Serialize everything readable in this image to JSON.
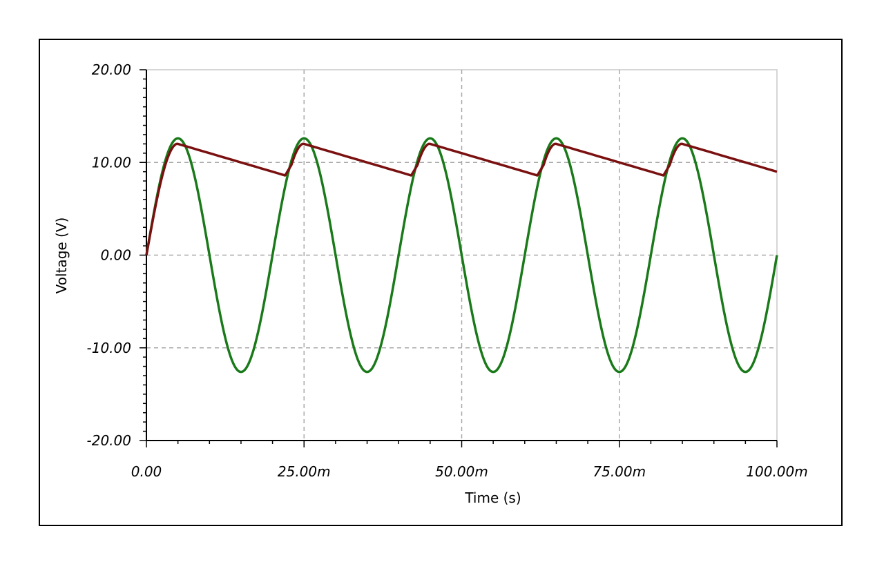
{
  "chart_data": {
    "type": "line",
    "xlabel": "Time (s)",
    "ylabel": "Voltage (V)",
    "xlim": [
      0,
      0.1
    ],
    "ylim": [
      -20,
      20
    ],
    "x_ticks": [
      0,
      0.025,
      0.05,
      0.075,
      0.1
    ],
    "x_tick_labels": [
      "0.00",
      "25.00m",
      "50.00m",
      "75.00m",
      "100.00m"
    ],
    "y_ticks": [
      20,
      10,
      0,
      -10,
      -20
    ],
    "y_tick_labels": [
      "20.00",
      "10.00",
      "0.00",
      "-10.00",
      "-20.00"
    ],
    "grid": true,
    "series": [
      {
        "color": "#1a7a1a",
        "kind": "sine",
        "amplitude": 12.6,
        "frequency_hz": 50,
        "x": [
          0,
          0.005,
          0.01,
          0.015,
          0.02,
          0.025,
          0.03,
          0.035,
          0.04,
          0.045,
          0.05,
          0.055,
          0.06,
          0.065,
          0.07,
          0.075,
          0.08,
          0.085,
          0.09,
          0.095,
          0.1
        ],
        "values": [
          0,
          12.6,
          0,
          -12.6,
          0,
          12.6,
          0,
          -12.6,
          0,
          12.6,
          0,
          -12.6,
          0,
          12.6,
          0,
          -12.6,
          0,
          12.6,
          0,
          -12.6,
          0
        ]
      },
      {
        "color": "#7a1010",
        "kind": "rectified_ripple",
        "x": [
          0,
          0.005,
          0.022,
          0.025,
          0.042,
          0.045,
          0.062,
          0.065,
          0.082,
          0.085,
          0.1
        ],
        "values": [
          0,
          12.0,
          8.6,
          12.0,
          8.6,
          12.0,
          8.6,
          12.0,
          8.6,
          12.0,
          9.0
        ]
      }
    ]
  }
}
